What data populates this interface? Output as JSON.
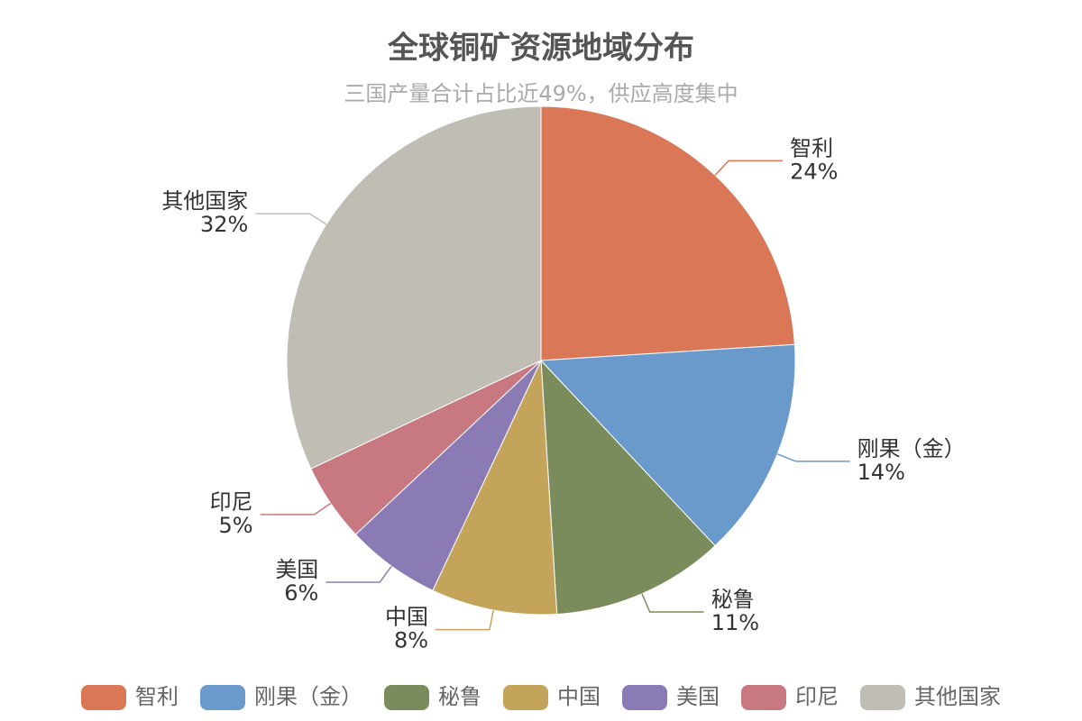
{
  "chart_data": {
    "type": "pie",
    "title": "全球铜矿资源地域分布",
    "subtitle": "三国产量合计占比近49%，供应高度集中",
    "categories": [
      "智利",
      "刚果（金）",
      "秘鲁",
      "中国",
      "美国",
      "印尼",
      "其他国家"
    ],
    "values": [
      24,
      14,
      11,
      8,
      6,
      5,
      32
    ],
    "value_labels": [
      "24%",
      "14%",
      "11%",
      "8%",
      "6%",
      "5%",
      "32%"
    ],
    "colors": [
      "#d97757",
      "#6a9acb",
      "#7a8c5c",
      "#c4a35a",
      "#8b7bb5",
      "#c77880",
      "#c0bdb5"
    ],
    "legend": "bottom"
  }
}
